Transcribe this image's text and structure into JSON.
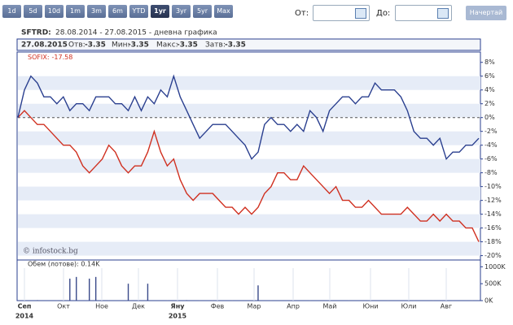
{
  "toolbar": {
    "ranges": [
      "1d",
      "5d",
      "10d",
      "1m",
      "3m",
      "6m",
      "YTD",
      "1yr",
      "3yr",
      "5yr",
      "Max"
    ],
    "selected": "1yr",
    "from_label": "От:",
    "to_label": "До:",
    "button": "Начертай"
  },
  "header": {
    "symbol": "SFTRD:",
    "subtitle": "28.08.2014 - 27.08.2015 - дневна графика",
    "info": {
      "date": "27.08.2015",
      "open_label": "Отв:",
      "open": -3.35,
      "min_label": "Мин:",
      "min": -3.35,
      "max_label": "Макс:",
      "max": -3.35,
      "close_label": "Затв:",
      "close": -3.35
    }
  },
  "chart_data": {
    "type": "line",
    "series": [
      {
        "name": "SFTRD",
        "color": "#2a3f8f",
        "values": [
          0,
          4,
          6,
          5,
          3,
          3,
          2,
          3,
          1,
          2,
          2,
          1,
          3,
          3,
          3,
          2,
          2,
          1,
          3,
          1,
          3,
          2,
          4,
          3,
          6,
          3,
          1,
          -1,
          -3,
          -2,
          -1,
          -1,
          -1,
          -2,
          -3,
          -4,
          -6,
          -5,
          -1,
          0,
          -1,
          -1,
          -2,
          -1,
          -2,
          1,
          0,
          -2,
          1,
          2,
          3,
          3,
          2,
          3,
          3,
          5,
          4,
          4,
          4,
          3,
          1,
          -2,
          -3,
          -3,
          -4,
          -3,
          -6,
          -5,
          -5,
          -4,
          -4,
          -3
        ]
      },
      {
        "name": "SOFIX",
        "color": "#d03020",
        "values": [
          0,
          1,
          0,
          -1,
          -1,
          -2,
          -3,
          -4,
          -4,
          -5,
          -7,
          -8,
          -7,
          -6,
          -4,
          -5,
          -7,
          -8,
          -7,
          -7,
          -5,
          -2,
          -5,
          -7,
          -6,
          -9,
          -11,
          -12,
          -11,
          -11,
          -11,
          -12,
          -13,
          -13,
          -14,
          -13,
          -14,
          -13,
          -11,
          -10,
          -8,
          -8,
          -9,
          -9,
          -7,
          -8,
          -9,
          -10,
          -11,
          -10,
          -12,
          -12,
          -13,
          -13,
          -12,
          -13,
          -14,
          -14,
          -14,
          -14,
          -13,
          -14,
          -15,
          -15,
          -14,
          -15,
          -14,
          -15,
          -15,
          -16,
          -16,
          -18
        ]
      }
    ],
    "legend": {
      "label": "SOFIX:",
      "value": -17.58
    },
    "watermark": "© infostock.bg",
    "ylim": [
      -20.4,
      9.5
    ],
    "yticks": [
      {
        "value": 8,
        "label": "8%"
      },
      {
        "value": 6,
        "label": "6%"
      },
      {
        "value": 4,
        "label": "4%"
      },
      {
        "value": 2,
        "label": "2%"
      },
      {
        "value": 0,
        "label": "0%"
      },
      {
        "value": -2,
        "label": "-2%"
      },
      {
        "value": -4,
        "label": "-4%"
      },
      {
        "value": -6,
        "label": "-6%"
      },
      {
        "value": -8,
        "label": "-8%"
      },
      {
        "value": -10,
        "label": "-10%"
      },
      {
        "value": -12,
        "label": "-12%"
      },
      {
        "value": -14,
        "label": "-14%"
      },
      {
        "value": -16,
        "label": "-16%"
      },
      {
        "value": -18,
        "label": "-18%"
      },
      {
        "value": -20,
        "label": "-20%"
      }
    ],
    "months": [
      "Сеп",
      "Окт",
      "Ное",
      "Дек",
      "Яну",
      "Фев",
      "Мар",
      "Апр",
      "Май",
      "Юни",
      "Юли",
      "Авг"
    ],
    "years": [
      "2014",
      "2015"
    ],
    "volume": {
      "label": "Обем (лотове): 0.14K",
      "color": "#3a4a8a",
      "values": [
        0,
        10,
        0,
        15,
        0,
        0,
        10,
        0,
        650,
        700,
        0,
        650,
        700,
        0,
        10,
        0,
        0,
        500,
        0,
        0,
        500,
        0,
        0,
        10,
        0,
        0,
        15,
        0,
        10,
        0,
        10,
        0,
        0,
        10,
        0,
        0,
        10,
        450,
        0,
        10,
        0,
        0,
        10,
        0,
        0,
        10,
        0,
        0,
        10,
        0,
        0,
        10,
        0,
        0,
        10,
        0,
        0,
        10,
        0,
        0,
        0,
        10,
        0,
        0,
        10,
        0,
        0,
        10,
        0,
        0,
        10,
        0
      ],
      "ylim": [
        0,
        1200
      ],
      "yticks": [
        {
          "value": 1000,
          "label": "1000K"
        },
        {
          "value": 500,
          "label": "500K"
        },
        {
          "value": 0,
          "label": "0K"
        }
      ]
    }
  }
}
